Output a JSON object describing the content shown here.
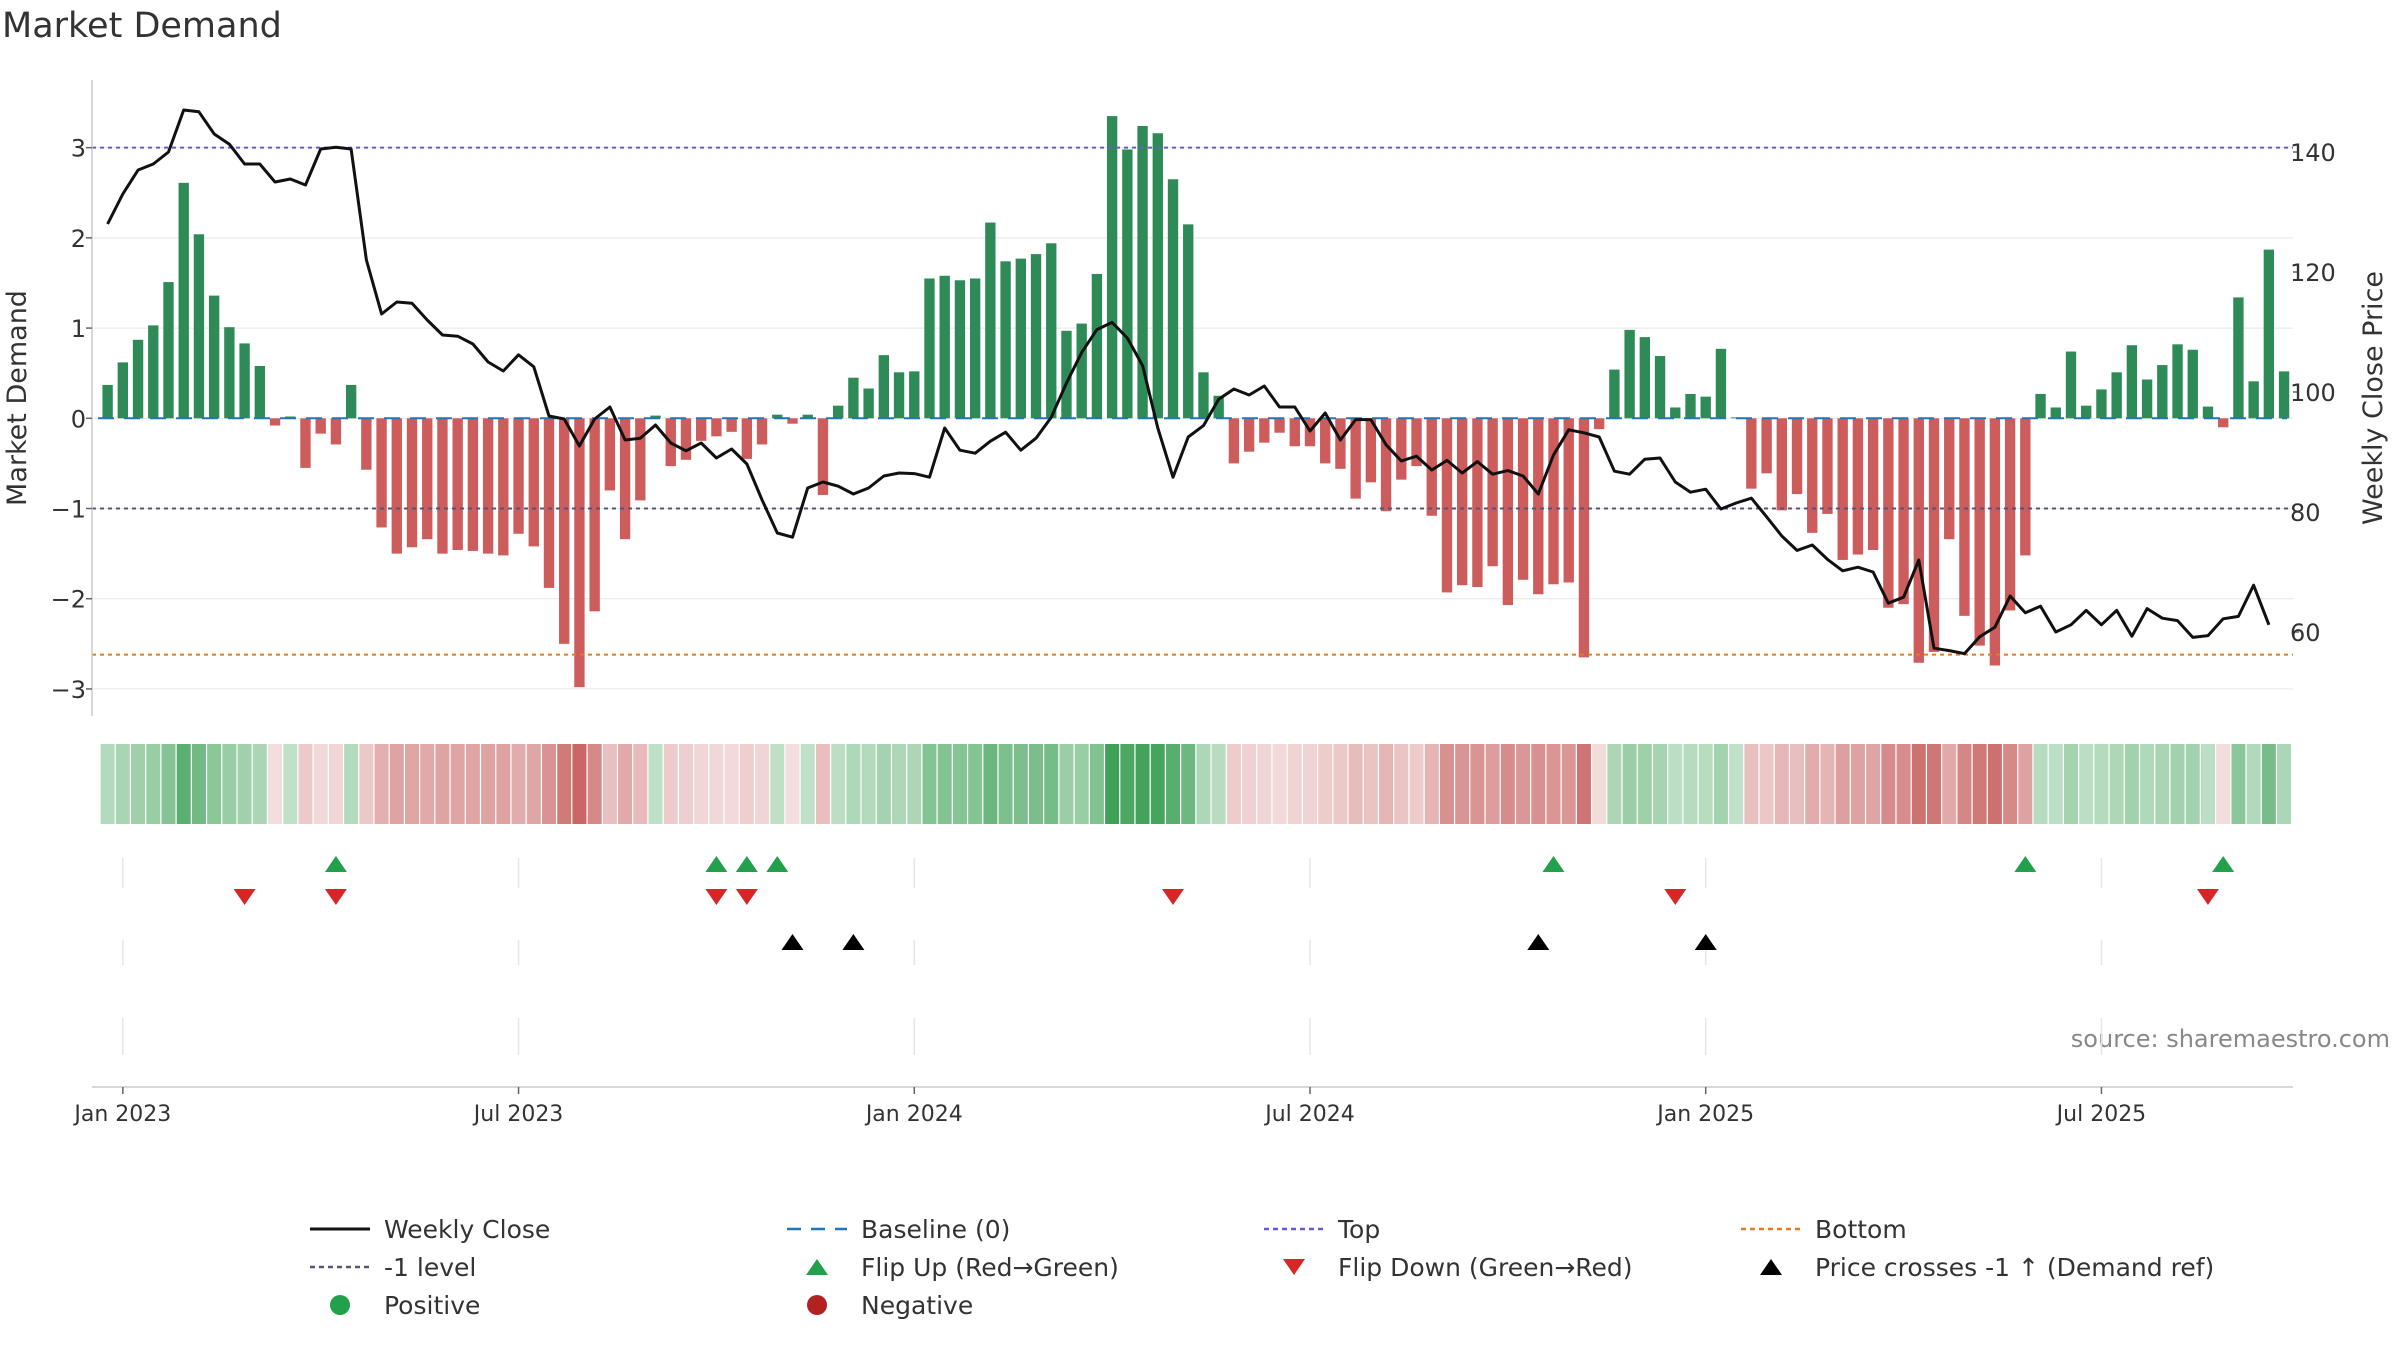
{
  "chart_data": {
    "type": "bar",
    "title": "Market Demand",
    "ylabel": "Market Demand",
    "y2label": "Weekly Close Price",
    "source": "source: sharemaestro.com",
    "ylim": [
      -3.3,
      3.75
    ],
    "y2lim": [
      46,
      152
    ],
    "yticks": [
      3,
      2,
      1,
      0,
      -1,
      -2,
      -3
    ],
    "ytick_labels": [
      "3",
      "2",
      "1",
      "0",
      "−1",
      "−2",
      "−3"
    ],
    "y2ticks": [
      140,
      120,
      100,
      80,
      60
    ],
    "y2tick_labels": [
      "140",
      "120",
      "100",
      "80",
      "60"
    ],
    "date_labels": [
      "Jan 2023",
      "Jul 2023",
      "Jan 2024",
      "Jul 2024",
      "Jan 2025",
      "Jul 2025"
    ],
    "date_ticks_week": [
      1,
      27,
      53,
      79,
      105,
      131
    ],
    "top_level": 3,
    "minus_one_level": -1,
    "bottom_level": -2.62,
    "colors": {
      "positive": "#2e8b57",
      "negative": "#cd5c5c",
      "price": "#111111",
      "baseline": "#1f77b4",
      "top": "#6a5acd",
      "minus_one": "#555577",
      "bottom": "#e07b24",
      "flip_up": "#22a04b",
      "flip_down": "#d62728",
      "cross": "#000000",
      "grid": "#e6e6e6",
      "source": "#888888"
    },
    "demand": [
      0.37,
      0.62,
      0.87,
      1.03,
      1.51,
      2.61,
      2.04,
      1.36,
      1.01,
      0.83,
      0.58,
      -0.08,
      0.02,
      -0.55,
      -0.17,
      -0.29,
      0.37,
      -0.57,
      -1.21,
      -1.5,
      -1.43,
      -1.34,
      -1.5,
      -1.46,
      -1.47,
      -1.5,
      -1.52,
      -1.28,
      -1.42,
      -1.88,
      -2.5,
      -2.98,
      -2.14,
      -0.8,
      -1.34,
      -0.91,
      0.03,
      -0.53,
      -0.46,
      -0.25,
      -0.2,
      -0.15,
      -0.45,
      -0.29,
      0.04,
      -0.06,
      0.04,
      -0.85,
      0.14,
      0.45,
      0.33,
      0.7,
      0.51,
      0.52,
      1.55,
      1.58,
      1.53,
      1.55,
      2.17,
      1.74,
      1.77,
      1.82,
      1.94,
      0.97,
      1.05,
      1.6,
      3.35,
      2.98,
      3.24,
      3.16,
      2.65,
      2.15,
      0.51,
      0.25,
      -0.5,
      -0.37,
      -0.27,
      -0.16,
      -0.31,
      -0.31,
      -0.5,
      -0.56,
      -0.89,
      -0.71,
      -1.03,
      -0.68,
      -0.53,
      -1.08,
      -1.93,
      -1.85,
      -1.87,
      -1.64,
      -2.07,
      -1.79,
      -1.95,
      -1.84,
      -1.82,
      -2.65,
      -0.12,
      0.54,
      0.98,
      0.9,
      0.69,
      0.12,
      0.27,
      0.24,
      0.77,
      0.01,
      -0.78,
      -0.61,
      -1.02,
      -0.84,
      -1.27,
      -1.06,
      -1.57,
      -1.51,
      -1.46,
      -2.1,
      -2.06,
      -2.71,
      -2.59,
      -1.34,
      -2.19,
      -2.52,
      -2.74,
      -2.13,
      -1.52,
      0.27,
      0.12,
      0.74,
      0.14,
      0.32,
      0.51,
      0.81,
      0.43,
      0.59,
      0.82,
      0.76,
      0.13,
      -0.1,
      1.34,
      0.41,
      1.87,
      0.52
    ],
    "price": [
      128,
      133,
      137,
      138,
      140,
      147,
      146.7,
      143,
      141.3,
      138,
      138,
      135,
      135.5,
      134.5,
      140.5,
      140.8,
      140.5,
      122,
      113,
      115,
      114.8,
      112,
      109.5,
      109.3,
      108,
      105,
      103.5,
      106.2,
      104.2,
      96,
      95.5,
      91,
      95.5,
      97.5,
      92,
      92.3,
      94.5,
      91.5,
      90.2,
      91.5,
      89,
      90.5,
      88,
      82,
      76.5,
      75.8,
      84,
      85,
      84.3,
      83,
      84,
      86,
      86.5,
      86.4,
      85.8,
      94,
      90.3,
      89.8,
      91.8,
      93.3,
      90.3,
      92.3,
      95.8,
      101.5,
      106.6,
      110.4,
      111.6,
      109,
      104.4,
      94,
      85.8,
      92.5,
      94.4,
      98.8,
      100.5,
      99.5,
      101,
      97.5,
      97.5,
      93.5,
      96.5,
      92,
      95.4,
      95.4,
      91.2,
      88.5,
      89.3,
      87,
      88.6,
      86.5,
      88.4,
      86.3,
      86.9,
      86,
      83,
      89.5,
      93.7,
      93.2,
      92.5,
      86.8,
      86.3,
      88.8,
      89,
      85,
      83.3,
      83.8,
      80.5,
      81.5,
      82.3,
      79.2,
      76,
      73.6,
      74.5,
      72.1,
      70.2,
      70.8,
      70,
      64.8,
      65.8,
      72,
      57.3,
      56.9,
      56.4,
      59.2,
      60.8,
      66,
      63.2,
      64.3,
      60,
      61.2,
      63.6,
      61.2,
      63.6,
      59.3,
      63.9,
      62.3,
      61.9,
      59.1,
      59.4,
      62.2,
      62.6,
      67.8,
      61.2
    ],
    "flip_up_weeks": [
      15,
      40,
      42,
      44,
      95,
      126,
      139
    ],
    "flip_down_weeks": [
      9,
      15,
      40,
      42,
      70,
      103,
      138
    ],
    "cross_weeks": [
      45,
      49,
      94,
      105
    ],
    "legend": [
      {
        "label": "Weekly Close",
        "symbol": "line"
      },
      {
        "label": "Baseline (0)",
        "symbol": "dash-blue"
      },
      {
        "label": "Top",
        "symbol": "dot-purple"
      },
      {
        "label": "Bottom",
        "symbol": "dot-orange"
      },
      {
        "label": "-1 level",
        "symbol": "dot-gray"
      },
      {
        "label": "Flip Up (Red→Green)",
        "symbol": "tri-up-green"
      },
      {
        "label": "Flip Down (Green→Red)",
        "symbol": "tri-down-red"
      },
      {
        "label": "Price crosses -1 ↑ (Demand ref)",
        "symbol": "tri-up-black"
      },
      {
        "label": "Positive",
        "symbol": "circle-green"
      },
      {
        "label": "Negative",
        "symbol": "circle-red"
      }
    ]
  }
}
